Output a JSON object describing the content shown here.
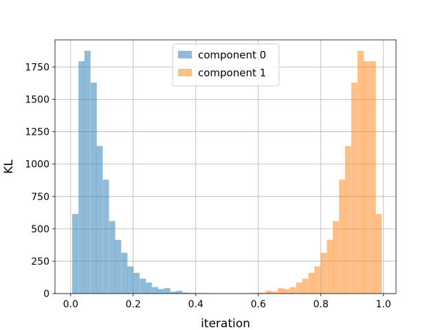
{
  "chart_data": {
    "type": "histogram",
    "xlabel": "iteration",
    "ylabel": "KL",
    "xlim": [
      -0.05,
      1.04
    ],
    "ylim": [
      0,
      1960
    ],
    "xticks": [
      "0.0",
      "0.2",
      "0.4",
      "0.6",
      "0.8",
      "1.0"
    ],
    "yticks": [
      "0",
      "250",
      "500",
      "750",
      "1000",
      "1250",
      "1500",
      "1750"
    ],
    "grid": true,
    "legend_position": "top-center",
    "bin_width": 0.0196,
    "series": [
      {
        "name": "component 0",
        "color": "#1f77b4",
        "opacity": 0.5,
        "bins": [
          {
            "x0": 0.005,
            "value": 615
          },
          {
            "x0": 0.025,
            "value": 1795
          },
          {
            "x0": 0.044,
            "value": 1875
          },
          {
            "x0": 0.064,
            "value": 1630
          },
          {
            "x0": 0.083,
            "value": 1140
          },
          {
            "x0": 0.103,
            "value": 880
          },
          {
            "x0": 0.123,
            "value": 560
          },
          {
            "x0": 0.142,
            "value": 415
          },
          {
            "x0": 0.162,
            "value": 315
          },
          {
            "x0": 0.181,
            "value": 210
          },
          {
            "x0": 0.201,
            "value": 160
          },
          {
            "x0": 0.221,
            "value": 115
          },
          {
            "x0": 0.24,
            "value": 85
          },
          {
            "x0": 0.26,
            "value": 50
          },
          {
            "x0": 0.279,
            "value": 35
          },
          {
            "x0": 0.299,
            "value": 42
          },
          {
            "x0": 0.319,
            "value": 15
          },
          {
            "x0": 0.338,
            "value": 22
          },
          {
            "x0": 0.358,
            "value": 8
          },
          {
            "x0": 0.377,
            "value": 5
          },
          {
            "x0": 0.397,
            "value": 4
          },
          {
            "x0": 0.417,
            "value": 3
          },
          {
            "x0": 0.436,
            "value": 2
          },
          {
            "x0": 0.456,
            "value": 1
          }
        ]
      },
      {
        "name": "component 1",
        "color": "#ff7f0e",
        "opacity": 0.5,
        "bins": [
          {
            "x0": 0.525,
            "value": 1
          },
          {
            "x0": 0.544,
            "value": 2
          },
          {
            "x0": 0.564,
            "value": 3
          },
          {
            "x0": 0.583,
            "value": 5
          },
          {
            "x0": 0.603,
            "value": 8
          },
          {
            "x0": 0.623,
            "value": 22
          },
          {
            "x0": 0.642,
            "value": 15
          },
          {
            "x0": 0.662,
            "value": 42
          },
          {
            "x0": 0.681,
            "value": 35
          },
          {
            "x0": 0.701,
            "value": 50
          },
          {
            "x0": 0.721,
            "value": 85
          },
          {
            "x0": 0.74,
            "value": 115
          },
          {
            "x0": 0.76,
            "value": 160
          },
          {
            "x0": 0.779,
            "value": 210
          },
          {
            "x0": 0.799,
            "value": 315
          },
          {
            "x0": 0.819,
            "value": 415
          },
          {
            "x0": 0.838,
            "value": 560
          },
          {
            "x0": 0.858,
            "value": 880
          },
          {
            "x0": 0.877,
            "value": 1140
          },
          {
            "x0": 0.897,
            "value": 1630
          },
          {
            "x0": 0.917,
            "value": 1875
          },
          {
            "x0": 0.936,
            "value": 1795
          },
          {
            "x0": 0.956,
            "value": 1795
          },
          {
            "x0": 0.975,
            "value": 615
          }
        ]
      }
    ]
  }
}
